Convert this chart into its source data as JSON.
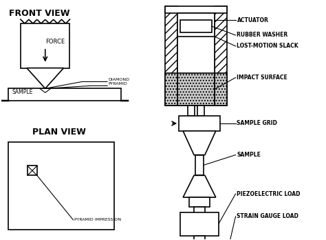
{
  "bg_color": "#ffffff",
  "line_color": "#000000",
  "title_front": "FRONT VIEW",
  "title_plan": "PLAN VIEW",
  "label_diamond": "DIAMOND\nPYRAMID",
  "label_sample_fv": "SAMPLE",
  "label_force": "FORCE",
  "label_pyramid_imp": "PYRAMID IMPRESSION",
  "right_labels": [
    "ACTUATOR",
    "RUBBER WASHER",
    "LOST-MOTION SLACK",
    "IMPACT SURFACE",
    "SAMPLE GRID",
    "SAMPLE",
    "PIEZOELECTRIC LOAD",
    "STRAIN GAUGE LOAD"
  ]
}
